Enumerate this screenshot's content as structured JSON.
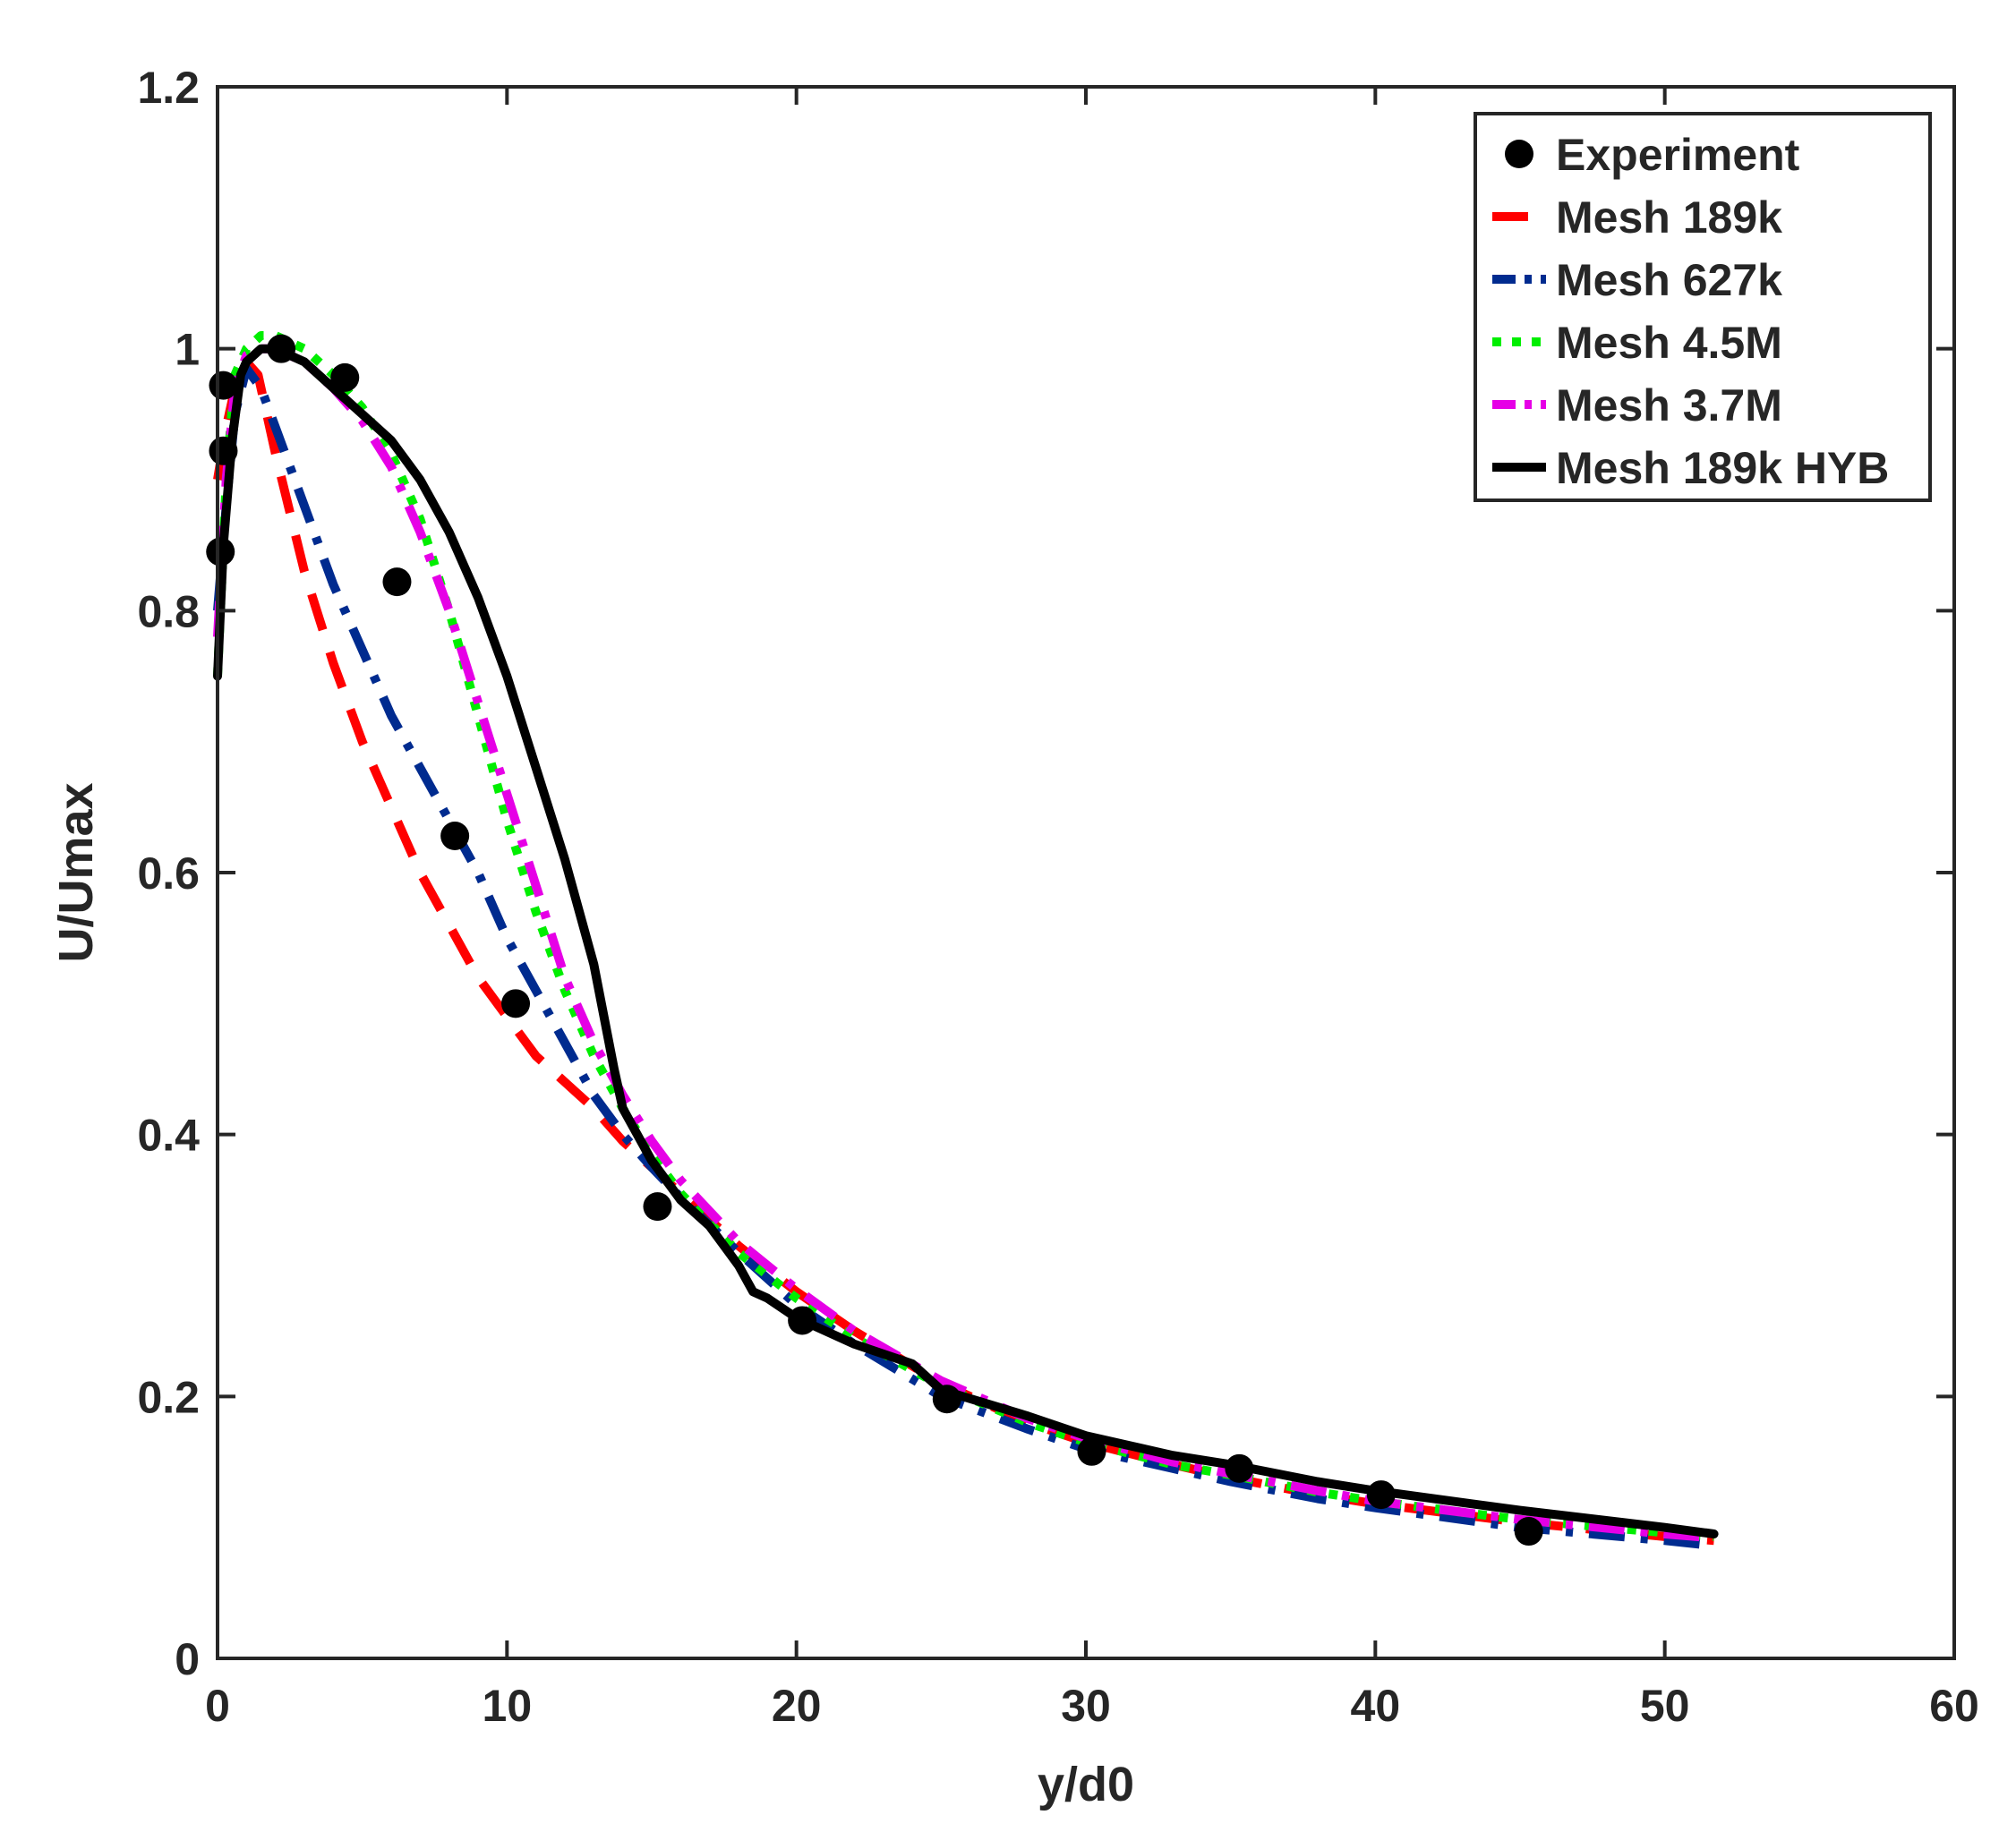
{
  "chart_data": {
    "type": "line",
    "title": "",
    "xlabel": "y/d0",
    "ylabel": "U/Umax",
    "xlim": [
      0,
      60
    ],
    "ylim": [
      0,
      1.2
    ],
    "xticks": [
      "0",
      "10",
      "20",
      "30",
      "40",
      "50",
      "60"
    ],
    "yticks": [
      "0",
      "0.2",
      "0.4",
      "0.6",
      "0.8",
      "1",
      "1.2"
    ],
    "legend_position": "top-right",
    "experiment": {
      "name": "Experiment",
      "color": "#000000",
      "x": [
        0.1,
        0.2,
        0.2,
        2.2,
        4.4,
        6.2,
        8.2,
        10.3,
        15.2,
        20.2,
        25.2,
        30.2,
        35.3,
        40.2,
        45.3
      ],
      "y": [
        0.845,
        0.922,
        0.972,
        1.0,
        0.978,
        0.822,
        0.628,
        0.5,
        0.345,
        0.258,
        0.198,
        0.158,
        0.145,
        0.125,
        0.097
      ]
    },
    "series": [
      {
        "name": "Mesh 189k",
        "color": "#ff0000",
        "dash": "dash",
        "x": [
          0,
          0.3,
          0.6,
          1.0,
          1.4,
          2.0,
          3.0,
          4.0,
          5.0,
          6.0,
          7.0,
          8.0,
          9.0,
          10.0,
          11.0,
          12.0,
          13.0,
          14.0,
          15.0,
          16.0,
          18.0,
          20.0,
          22.0,
          25.0,
          28.0,
          30.0,
          33.0,
          35.0,
          38.0,
          40.0,
          45.0,
          50.0,
          51.7
        ],
        "y": [
          0.9,
          0.94,
          0.97,
          0.99,
          0.98,
          0.92,
          0.83,
          0.76,
          0.7,
          0.65,
          0.6,
          0.56,
          0.52,
          0.49,
          0.46,
          0.44,
          0.42,
          0.395,
          0.375,
          0.355,
          0.315,
          0.28,
          0.25,
          0.21,
          0.18,
          0.165,
          0.148,
          0.138,
          0.125,
          0.118,
          0.104,
          0.093,
          0.09
        ]
      },
      {
        "name": "Mesh 627k",
        "color": "#002b8f",
        "dash": "dashdot",
        "x": [
          0,
          0.3,
          0.6,
          1.0,
          1.5,
          2.0,
          3.0,
          4.0,
          5.0,
          6.0,
          7.0,
          8.0,
          9.0,
          10.0,
          11.0,
          12.0,
          13.0,
          14.0,
          15.0,
          16.0,
          18.0,
          20.0,
          22.0,
          25.0,
          28.0,
          30.0,
          33.0,
          35.0,
          38.0,
          40.0,
          45.0,
          50.0,
          51.7
        ],
        "y": [
          0.8,
          0.88,
          0.95,
          0.985,
          0.97,
          0.94,
          0.88,
          0.82,
          0.77,
          0.72,
          0.68,
          0.64,
          0.6,
          0.55,
          0.51,
          0.47,
          0.43,
          0.4,
          0.375,
          0.352,
          0.31,
          0.27,
          0.24,
          0.2,
          0.175,
          0.16,
          0.145,
          0.135,
          0.122,
          0.115,
          0.1,
          0.09,
          0.086
        ]
      },
      {
        "name": "Mesh 4.5M",
        "color": "#00ee00",
        "dash": "dot",
        "x": [
          0,
          0.3,
          0.6,
          1.0,
          1.5,
          2.0,
          3.0,
          4.0,
          5.0,
          6.0,
          7.0,
          8.0,
          9.0,
          10.0,
          11.0,
          12.0,
          13.0,
          14.0,
          15.0,
          16.0,
          18.0,
          20.0,
          22.0,
          25.0,
          28.0,
          30.0,
          33.0,
          35.0,
          38.0,
          40.0,
          45.0,
          50.0,
          51.7
        ],
        "y": [
          0.75,
          0.9,
          0.98,
          1.0,
          1.01,
          1.01,
          1.0,
          0.98,
          0.955,
          0.92,
          0.87,
          0.8,
          0.72,
          0.64,
          0.57,
          0.51,
          0.46,
          0.42,
          0.385,
          0.355,
          0.31,
          0.275,
          0.245,
          0.208,
          0.18,
          0.165,
          0.148,
          0.14,
          0.127,
          0.12,
          0.106,
          0.096,
          0.093
        ]
      },
      {
        "name": "Mesh 3.7M",
        "color": "#e600e6",
        "dash": "dashdot",
        "x": [
          0,
          0.3,
          0.6,
          1.0,
          1.5,
          2.0,
          3.0,
          4.0,
          5.0,
          6.0,
          7.0,
          8.0,
          9.0,
          10.0,
          11.0,
          12.0,
          13.0,
          14.0,
          15.0,
          16.0,
          18.0,
          20.0,
          22.0,
          25.0,
          28.0,
          30.0,
          33.0,
          35.0,
          38.0,
          40.0,
          45.0,
          50.0,
          51.7
        ],
        "y": [
          0.78,
          0.9,
          0.97,
          0.995,
          1.0,
          1.0,
          0.99,
          0.97,
          0.945,
          0.91,
          0.86,
          0.8,
          0.73,
          0.66,
          0.59,
          0.52,
          0.47,
          0.43,
          0.395,
          0.365,
          0.318,
          0.282,
          0.25,
          0.212,
          0.183,
          0.168,
          0.15,
          0.141,
          0.128,
          0.12,
          0.106,
          0.095,
          0.092
        ]
      },
      {
        "name": "Mesh 189k HYB",
        "color": "#000000",
        "dash": "solid",
        "x": [
          0,
          0.2,
          0.5,
          0.8,
          1.0,
          1.5,
          2.0,
          3.0,
          4.0,
          5.0,
          6.0,
          7.0,
          8.0,
          9.0,
          10.0,
          11.0,
          12.0,
          13.0,
          13.7,
          14.0,
          15.0,
          16.0,
          17.0,
          18.0,
          18.5,
          19.0,
          20.0,
          22.0,
          24.0,
          25.0,
          28.0,
          30.0,
          33.0,
          35.0,
          38.0,
          40.0,
          45.0,
          50.0,
          51.7
        ],
        "y": [
          0.75,
          0.85,
          0.93,
          0.98,
          0.99,
          1.0,
          1.0,
          0.99,
          0.97,
          0.95,
          0.93,
          0.9,
          0.86,
          0.81,
          0.75,
          0.68,
          0.61,
          0.53,
          0.45,
          0.42,
          0.38,
          0.35,
          0.33,
          0.3,
          0.28,
          0.275,
          0.26,
          0.24,
          0.225,
          0.205,
          0.185,
          0.17,
          0.155,
          0.148,
          0.135,
          0.128,
          0.113,
          0.1,
          0.095
        ]
      }
    ]
  }
}
